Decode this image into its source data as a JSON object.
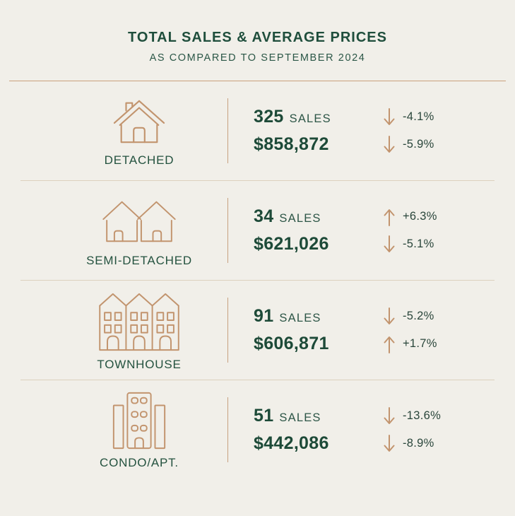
{
  "header": {
    "title": "TOTAL SALES & AVERAGE PRICES",
    "subtitle": "AS COMPARED TO SEPTEMBER 2024"
  },
  "colors": {
    "background": "#f1efe9",
    "dark_green": "#1d4a38",
    "tan_accent": "#c2946e",
    "top_divider": "#c9a17c",
    "row_divider": "#dcd1bd"
  },
  "rows": [
    {
      "type": "DETACHED",
      "icon": "detached-house-icon",
      "sales": "325",
      "sales_label": "SALES",
      "price": "$858,872",
      "sales_change": {
        "direction": "down",
        "value": "-4.1%"
      },
      "price_change": {
        "direction": "down",
        "value": "-5.9%"
      }
    },
    {
      "type": "SEMI-DETACHED",
      "icon": "semi-detached-house-icon",
      "sales": "34",
      "sales_label": "SALES",
      "price": "$621,026",
      "sales_change": {
        "direction": "up",
        "value": "+6.3%"
      },
      "price_change": {
        "direction": "down",
        "value": "-5.1%"
      }
    },
    {
      "type": "TOWNHOUSE",
      "icon": "townhouse-icon",
      "sales": "91",
      "sales_label": "SALES",
      "price": "$606,871",
      "sales_change": {
        "direction": "down",
        "value": "-5.2%"
      },
      "price_change": {
        "direction": "up",
        "value": "+1.7%"
      }
    },
    {
      "type": "CONDO/APT.",
      "icon": "condo-apartment-icon",
      "sales": "51",
      "sales_label": "SALES",
      "price": "$442,086",
      "sales_change": {
        "direction": "down",
        "value": "-13.6%"
      },
      "price_change": {
        "direction": "down",
        "value": "-8.9%"
      }
    }
  ]
}
